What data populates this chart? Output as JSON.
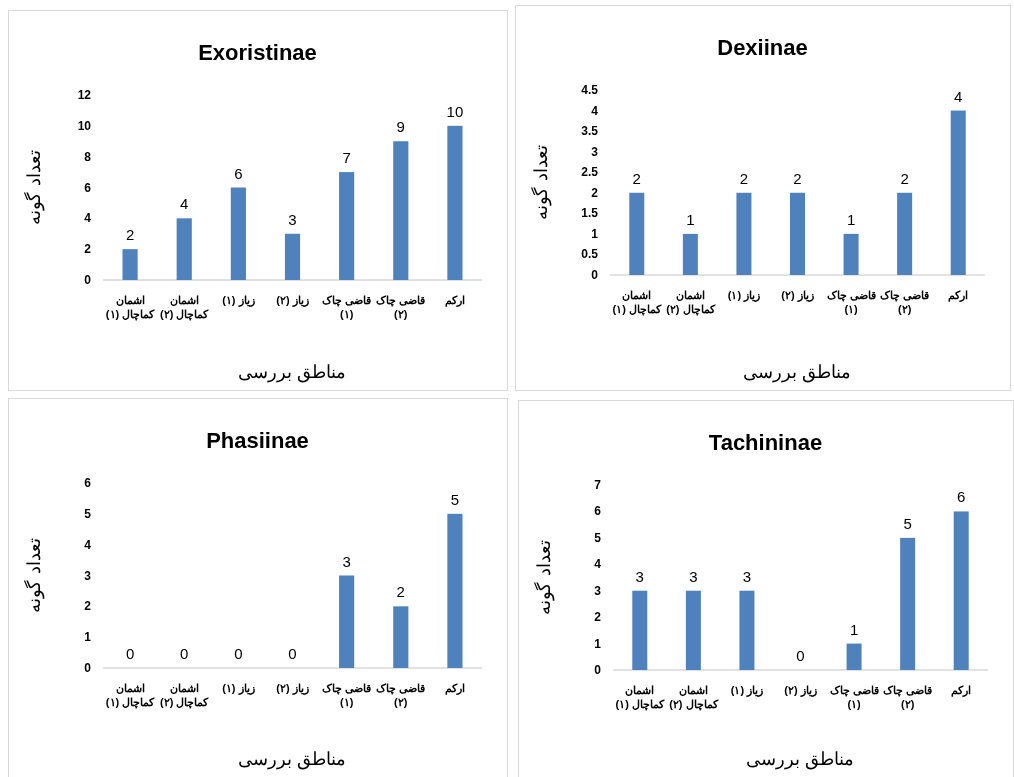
{
  "chart_data": [
    {
      "type": "bar",
      "title": "Exoristinae",
      "xlabel": "مناطق بررسی",
      "ylabel": "تعداد گونه",
      "categories": [
        "اشمان کماچال (۱)",
        "اشمان کماچال (۲)",
        "زیاز (۱)",
        "زیاز (۲)",
        "قاضی چاک (۱)",
        "قاضی چاک (۲)",
        "ارکم"
      ],
      "series": [
        {
          "color": "#4f81bd",
          "values": [
            2,
            4,
            6,
            3,
            7,
            9,
            10
          ]
        }
      ],
      "ylim": [
        0,
        12
      ],
      "yticks": [
        0,
        2,
        4,
        6,
        8,
        10,
        12
      ],
      "data_labels": true
    },
    {
      "type": "bar",
      "title": "Dexiinae",
      "xlabel": "مناطق بررسی",
      "ylabel": "تعداد گونه",
      "categories": [
        "اشمان کماچال (۱)",
        "اشمان کماچال (۲)",
        "زیاز (۱)",
        "زیاز (۲)",
        "قاضی چاک (۱)",
        "قاضی چاک (۲)",
        "ارکم"
      ],
      "series": [
        {
          "color": "#4f81bd",
          "values": [
            2,
            1,
            2,
            2,
            1,
            2,
            4
          ]
        }
      ],
      "ylim": [
        0,
        4.5
      ],
      "yticks": [
        0,
        0.5,
        1,
        1.5,
        2,
        2.5,
        3,
        3.5,
        4,
        4.5
      ],
      "data_labels": true
    },
    {
      "type": "bar",
      "title": "Phasiinae",
      "xlabel": "مناطق بررسی",
      "ylabel": "تعداد گونه",
      "categories": [
        "اشمان کماچال (۱)",
        "اشمان کماچال (۲)",
        "زیاز (۱)",
        "زیاز (۲)",
        "قاضی چاک (۱)",
        "قاضی چاک (۲)",
        "ارکم"
      ],
      "series": [
        {
          "color": "#4f81bd",
          "values": [
            0,
            0,
            0,
            0,
            3,
            2,
            5
          ]
        }
      ],
      "ylim": [
        0,
        6
      ],
      "yticks": [
        0,
        1,
        2,
        3,
        4,
        5,
        6
      ],
      "data_labels": true
    },
    {
      "type": "bar",
      "title": "Tachininae",
      "xlabel": "مناطق بررسی",
      "ylabel": "تعداد گونه",
      "categories": [
        "اشمان کماچال (۱)",
        "اشمان کماچال (۲)",
        "زیاز (۱)",
        "زیاز (۲)",
        "قاضی چاک (۱)",
        "قاضی چاک (۲)",
        "ارکم"
      ],
      "series": [
        {
          "color": "#4f81bd",
          "values": [
            3,
            3,
            3,
            0,
            1,
            5,
            6
          ]
        }
      ],
      "ylim": [
        0,
        7
      ],
      "yticks": [
        0,
        1,
        2,
        3,
        4,
        5,
        6,
        7
      ],
      "data_labels": true
    }
  ]
}
